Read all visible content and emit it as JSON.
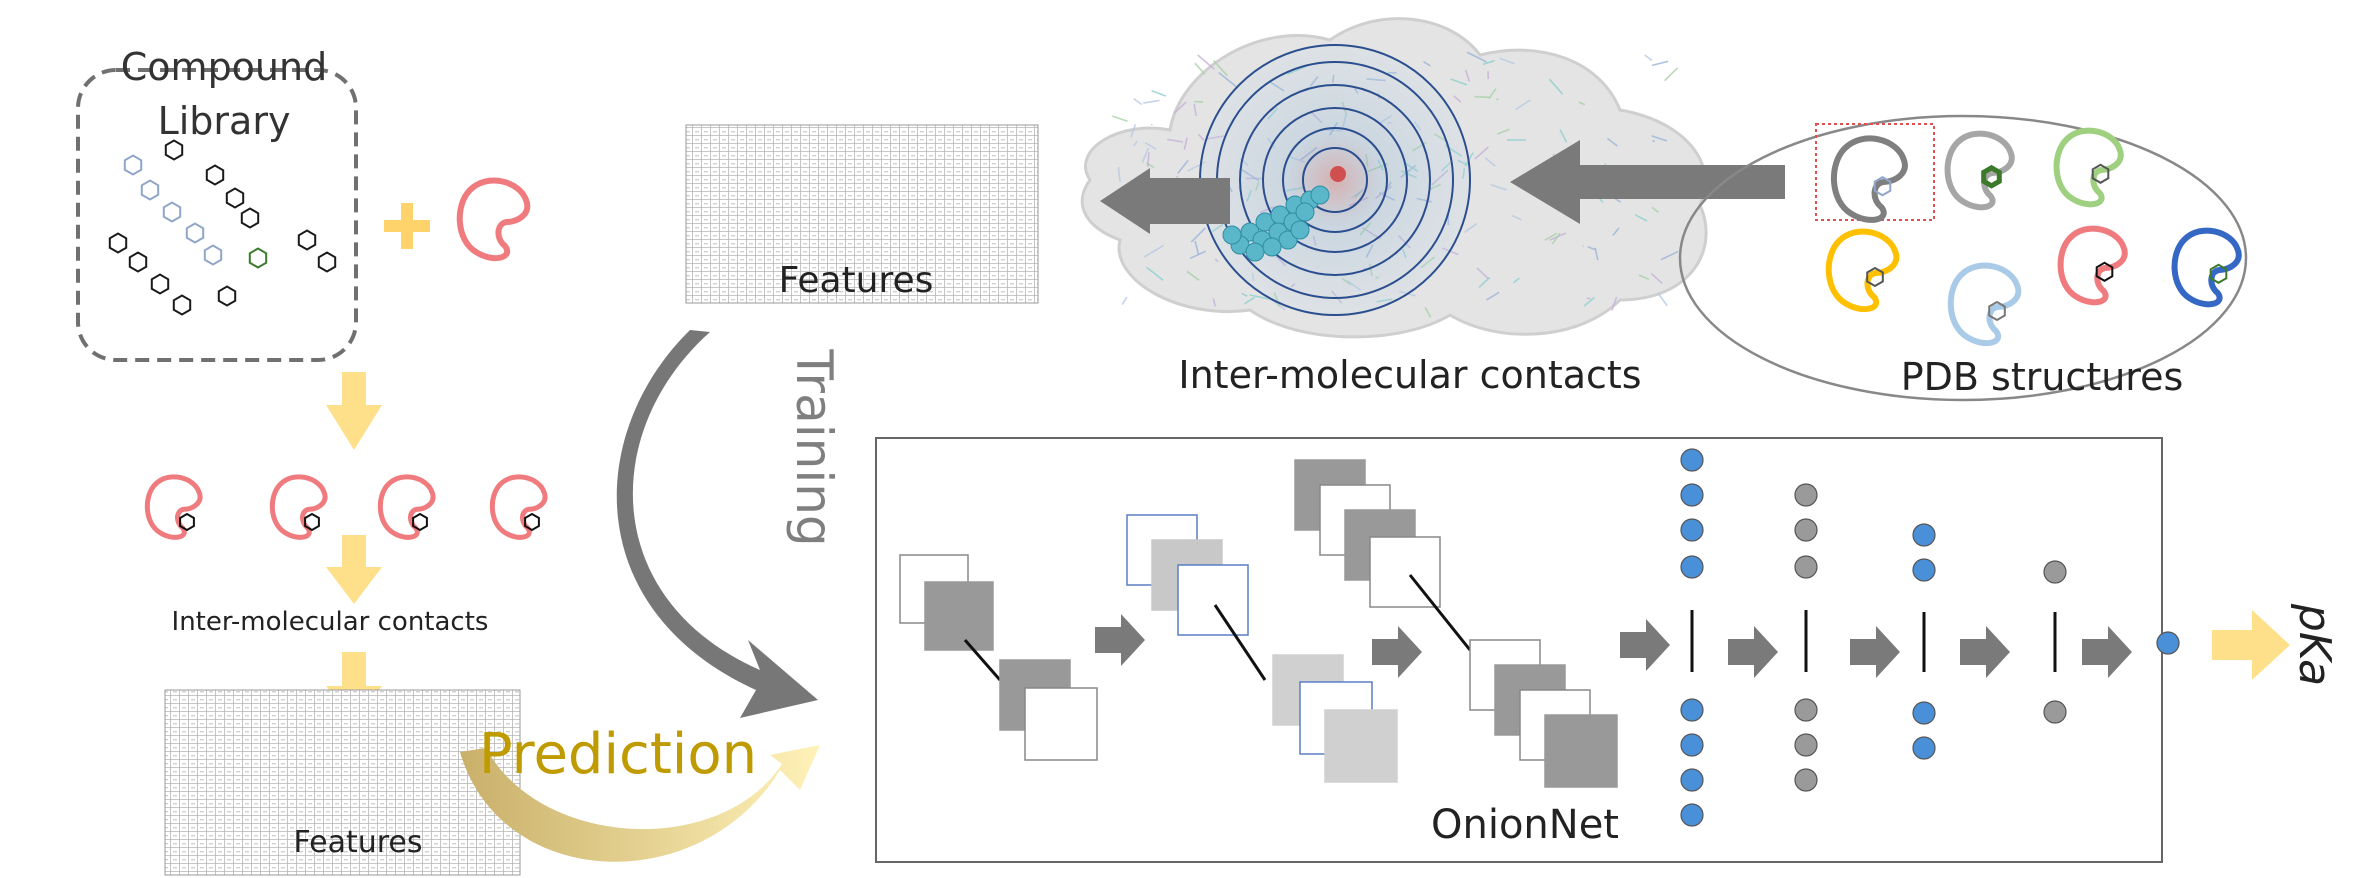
{
  "compound_library": {
    "title_line1": "Compound",
    "title_line2": "Library"
  },
  "labels": {
    "inter_contacts_top": "Inter-molecular contacts",
    "pdb_structures": "PDB structures",
    "features_top": "Features",
    "inter_contacts_left": "Inter-molecular contacts",
    "features_bottom": "Features",
    "training": "Training",
    "prediction": "Prediction",
    "onionnet": "OnionNet",
    "output": "pKa"
  },
  "colors": {
    "library_hex_outline": "#1a1a1a",
    "library_hex_light": "#8fa6c8",
    "library_hex_green": "#3a7a2a",
    "pocket_red": "#f07b7f",
    "plus_yellow": "#ffd36b",
    "flow_arrow_yellow": "#ffe08a",
    "dark_arrow": "#777777",
    "prediction_text": "#bf9b00",
    "nn_node_blue": "#4a90d9",
    "nn_node_gray": "#9a9a9a",
    "pdb_gray": "#7f7f7f",
    "pdb_light_gray": "#a6a6a6",
    "pdb_green": "#9ed080",
    "pdb_yellow": "#ffc000",
    "pdb_light_blue": "#a9cbe8",
    "pdb_red": "#f07b7f",
    "pdb_blue": "#3567c4"
  },
  "icons": [
    "hexagon-ligand-icon",
    "protein-pocket-icon",
    "plus-icon",
    "block-arrow-icon",
    "neural-node-icon"
  ]
}
